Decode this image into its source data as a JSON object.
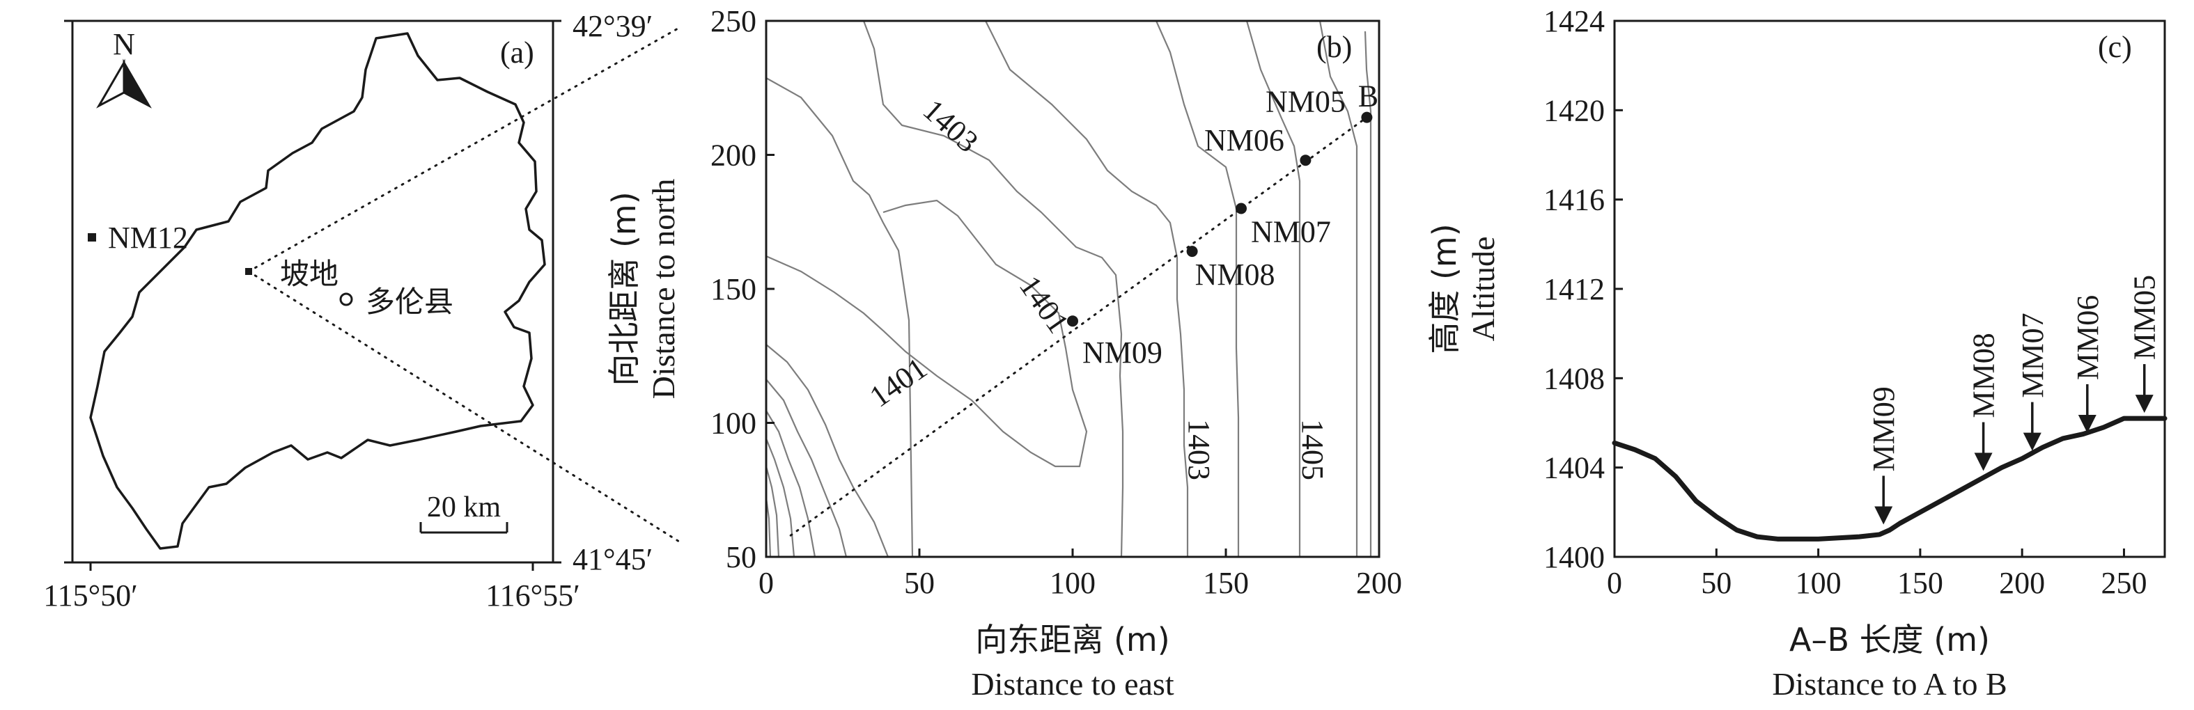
{
  "panel_a": {
    "label": "(a)",
    "north_label": "N",
    "lat_top": "42°39′",
    "lat_bottom": "41°45′",
    "lon_left": "115°50′",
    "lon_right": "116°55′",
    "station_label": "NM12",
    "site_label": "坡地",
    "county_label": "多伦县",
    "scale_label": "20 km"
  },
  "chart_data": [
    {
      "type": "contour",
      "panel": "(b)",
      "xlabel": "向东距离 (m)",
      "xlabel_en": "Distance to east",
      "ylabel": "向北距离 (m)",
      "ylabel_en": "Distance to north",
      "xlim": [
        0,
        200
      ],
      "ylim": [
        50,
        250
      ],
      "xticks": [
        0,
        50,
        100,
        150,
        200
      ],
      "yticks": [
        50,
        100,
        150,
        200,
        250
      ],
      "contour_labels": [
        {
          "text": "1403",
          "x": 58,
          "y": 208
        },
        {
          "text": "1401",
          "x": 88,
          "y": 142
        },
        {
          "text": "1401",
          "x": 45,
          "y": 112
        },
        {
          "text": "1403",
          "x": 138,
          "y": 90
        },
        {
          "text": "1405",
          "x": 175,
          "y": 90
        }
      ],
      "transect_end_label": "B",
      "sites": [
        {
          "name": "NM05",
          "x": 196,
          "y": 214
        },
        {
          "name": "NM06",
          "x": 176,
          "y": 198
        },
        {
          "name": "NM07",
          "x": 155,
          "y": 180
        },
        {
          "name": "NM08",
          "x": 139,
          "y": 164
        },
        {
          "name": "NM09",
          "x": 100,
          "y": 138
        }
      ]
    },
    {
      "type": "line",
      "panel": "(c)",
      "xlabel": "A–B 长度 (m)",
      "xlabel_en": "Distance to A to B",
      "ylabel": "高度 (m)",
      "ylabel_en": "Altitude",
      "xlim": [
        0,
        270
      ],
      "ylim": [
        1400,
        1424
      ],
      "xticks": [
        0,
        50,
        100,
        150,
        200,
        250
      ],
      "yticks": [
        1400,
        1404,
        1408,
        1412,
        1416,
        1420,
        1424
      ],
      "x": [
        0,
        10,
        20,
        30,
        40,
        50,
        60,
        70,
        80,
        90,
        100,
        110,
        120,
        130,
        135,
        140,
        150,
        160,
        170,
        180,
        190,
        200,
        210,
        220,
        230,
        240,
        250,
        260,
        270
      ],
      "y": [
        1405.1,
        1404.8,
        1404.4,
        1403.6,
        1402.5,
        1401.8,
        1401.2,
        1400.9,
        1400.8,
        1400.8,
        1400.8,
        1400.85,
        1400.9,
        1401.0,
        1401.2,
        1401.5,
        1402.0,
        1402.5,
        1403.0,
        1403.5,
        1404.0,
        1404.4,
        1404.9,
        1405.3,
        1405.5,
        1405.8,
        1406.2,
        1406.2,
        1406.2
      ],
      "markers": [
        {
          "name": "MM09",
          "x": 132,
          "y": 1401.2
        },
        {
          "name": "MM08",
          "x": 181,
          "y": 1403.6
        },
        {
          "name": "MM07",
          "x": 205,
          "y": 1404.5
        },
        {
          "name": "MM06",
          "x": 232,
          "y": 1405.3
        },
        {
          "name": "MM05",
          "x": 260,
          "y": 1406.2
        }
      ]
    }
  ]
}
